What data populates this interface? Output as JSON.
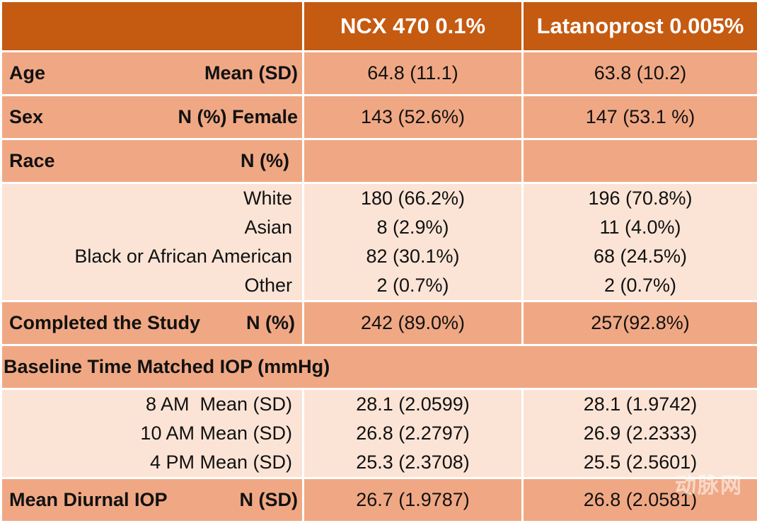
{
  "header": {
    "col1": "NCX 470 0.1%",
    "col2": "Latanoprost 0.005%"
  },
  "age": {
    "label": "Age",
    "stat": "Mean (SD)",
    "v1": "64.8 (11.1)",
    "v2": "63.8 (10.2)"
  },
  "sex": {
    "label": "Sex",
    "stat": "N (%) Female",
    "v1": "143 (52.6%)",
    "v2": "147 (53.1 %)"
  },
  "race": {
    "label": "Race",
    "stat": "N (%)",
    "items": [
      {
        "name": "White",
        "v1": "180 (66.2%)",
        "v2": "196 (70.8%)"
      },
      {
        "name": "Asian",
        "v1": "8 (2.9%)",
        "v2": "11 (4.0%)"
      },
      {
        "name": "Black or African American",
        "v1": "82 (30.1%)",
        "v2": "68 (24.5%)"
      },
      {
        "name": "Other",
        "v1": "2 (0.7%)",
        "v2": "2 (0.7%)"
      }
    ]
  },
  "completed": {
    "label": "Completed the Study",
    "stat": "N (%)",
    "v1": "242 (89.0%)",
    "v2": "257(92.8%)"
  },
  "baseline": {
    "label": "Baseline Time Matched IOP (mmHg)",
    "items": [
      {
        "name": "8 AM  Mean (SD)",
        "v1": "28.1 (2.0599)",
        "v2": "28.1 (1.9742)"
      },
      {
        "name": "10 AM Mean (SD)",
        "v1": "26.8 (2.2797)",
        "v2": "26.9 (2.2333)"
      },
      {
        "name": "4 PM Mean (SD)",
        "v1": "25.3 (2.3708)",
        "v2": "25.5 (2.5601)"
      }
    ]
  },
  "diurnal": {
    "label": "Mean Diurnal IOP",
    "stat": "N (SD)",
    "v1": "26.7 (1.9787)",
    "v2": "26.8 (2.0581)"
  },
  "watermark": "动脉网"
}
